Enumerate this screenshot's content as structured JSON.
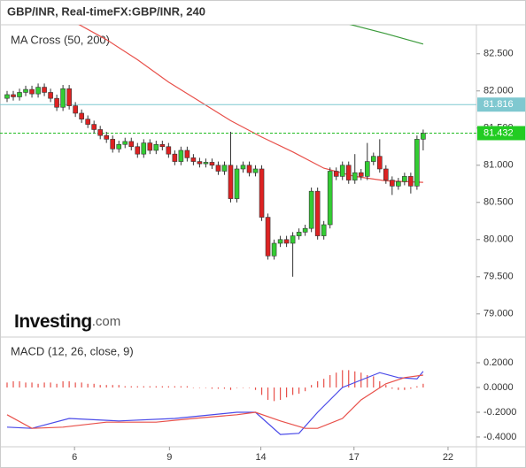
{
  "chart_data": [
    {
      "type": "candlestick",
      "title": "GBP/INR, Real-timeFX:GBP/INR, 240",
      "subtitle": "MA Cross (50, 200)",
      "logo": "Investing",
      "logo_suffix": ".com",
      "up_color": "#33cc33",
      "down_color": "#dd2222",
      "open": [
        81.9,
        81.95,
        81.92,
        81.98,
        82.02,
        81.96,
        82.05,
        81.98,
        81.9,
        81.78,
        82.03,
        81.8,
        81.7,
        81.62,
        81.55,
        81.48,
        81.4,
        81.35,
        81.22,
        81.28,
        81.32,
        81.25,
        81.15,
        81.3,
        81.2,
        81.28,
        81.25,
        81.15,
        81.05,
        81.2,
        81.1,
        81.05,
        81.02,
        81.04,
        81.0,
        80.92,
        81.0,
        80.55,
        80.95,
        81.0,
        80.9,
        80.95,
        80.3,
        79.78,
        79.95,
        80.0,
        79.95,
        80.05,
        80.1,
        80.15,
        80.65,
        80.05,
        80.2,
        80.92,
        80.85,
        81.0,
        80.8,
        80.9,
        80.85,
        81.05,
        81.12,
        80.95,
        80.8,
        80.72,
        80.78,
        80.85,
        80.72,
        81.35
      ],
      "high": [
        82.0,
        82.0,
        82.03,
        82.07,
        82.07,
        82.1,
        82.1,
        82.03,
        81.95,
        82.08,
        82.08,
        81.85,
        81.75,
        81.67,
        81.6,
        81.53,
        81.45,
        81.4,
        81.33,
        81.37,
        81.37,
        81.3,
        81.35,
        81.35,
        81.33,
        81.33,
        81.3,
        81.2,
        81.25,
        81.25,
        81.15,
        81.1,
        81.09,
        81.09,
        81.05,
        81.05,
        81.45,
        81.0,
        81.05,
        81.05,
        81.0,
        81.0,
        80.35,
        80.0,
        80.05,
        80.05,
        80.1,
        80.15,
        80.2,
        80.7,
        80.7,
        80.25,
        80.97,
        80.97,
        81.05,
        81.05,
        81.15,
        80.95,
        81.3,
        81.17,
        81.35,
        81.0,
        80.85,
        80.83,
        80.9,
        80.9,
        81.4,
        81.48
      ],
      "low": [
        81.85,
        81.87,
        81.87,
        81.93,
        81.91,
        81.91,
        81.93,
        81.85,
        81.73,
        81.73,
        81.75,
        81.65,
        81.57,
        81.5,
        81.43,
        81.35,
        81.3,
        81.17,
        81.17,
        81.23,
        81.2,
        81.1,
        81.1,
        81.15,
        81.15,
        81.2,
        81.1,
        81.0,
        81.0,
        81.05,
        81.0,
        80.97,
        80.97,
        80.95,
        80.87,
        80.87,
        80.5,
        80.5,
        80.9,
        80.85,
        80.85,
        80.25,
        79.73,
        79.73,
        79.9,
        79.9,
        79.5,
        80.0,
        80.05,
        80.1,
        80.0,
        80.0,
        80.15,
        80.8,
        80.8,
        80.75,
        80.75,
        80.8,
        80.8,
        81.0,
        80.9,
        80.75,
        80.6,
        80.67,
        80.73,
        80.62,
        80.67,
        81.2
      ],
      "close": [
        81.95,
        81.92,
        81.98,
        82.02,
        81.96,
        82.05,
        81.98,
        81.9,
        81.78,
        82.03,
        81.8,
        81.7,
        81.62,
        81.55,
        81.48,
        81.4,
        81.35,
        81.22,
        81.28,
        81.32,
        81.25,
        81.15,
        81.3,
        81.2,
        81.28,
        81.25,
        81.15,
        81.05,
        81.2,
        81.1,
        81.05,
        81.02,
        81.04,
        81.0,
        80.92,
        81.0,
        80.55,
        80.95,
        81.0,
        80.9,
        80.95,
        80.3,
        79.78,
        79.95,
        80.0,
        79.95,
        80.05,
        80.1,
        80.15,
        80.65,
        80.05,
        80.2,
        80.92,
        80.85,
        81.0,
        80.8,
        80.9,
        80.85,
        81.05,
        81.12,
        80.95,
        80.8,
        80.72,
        80.78,
        80.85,
        80.72,
        81.35,
        81.43
      ],
      "lines": [
        {
          "color": "#e8504a",
          "x": [
            11,
            16,
            21,
            26,
            31,
            36,
            41,
            46,
            51,
            56,
            61,
            67
          ],
          "values": [
            82.92,
            82.69,
            82.42,
            82.12,
            81.86,
            81.6,
            81.38,
            81.18,
            80.96,
            80.85,
            80.79,
            80.77
          ]
        },
        {
          "color": "#3a9a3a",
          "x": [
            55,
            61,
            67
          ],
          "values": [
            82.9,
            82.77,
            82.63
          ]
        }
      ],
      "price_lines": [
        {
          "value": 81.816,
          "color": "#7fc8d0",
          "label_color": "#7fc8d0",
          "dashed": false
        },
        {
          "value": 81.432,
          "color": "#22bb22",
          "label_color": "#22cc22",
          "dashed": true
        }
      ],
      "xlim": [
        -1.14,
        75.57
      ],
      "xticks": [
        {
          "value": 10.86,
          "label": "6"
        },
        {
          "value": 26.14,
          "label": "9"
        },
        {
          "value": 40.86,
          "label": "14"
        },
        {
          "value": 55.86,
          "label": "17"
        },
        {
          "value": 71.0,
          "label": "22"
        }
      ],
      "ylim": [
        78.7,
        82.89
      ],
      "yticks": [
        {
          "value": 79.0,
          "label": "79.000"
        },
        {
          "value": 79.5,
          "label": "79.500"
        },
        {
          "value": 80.0,
          "label": "80.000"
        },
        {
          "value": 80.5,
          "label": "80.500"
        },
        {
          "value": 81.0,
          "label": "81.000"
        },
        {
          "value": 81.5,
          "label": "81.500"
        },
        {
          "value": 82.0,
          "label": "82.000"
        },
        {
          "value": 82.5,
          "label": "82.500"
        }
      ]
    },
    {
      "type": "macd",
      "subtitle": "MACD (12, 26, close, 9)",
      "hist_color": "#e8504a",
      "histogram": [
        0.04,
        0.05,
        0.05,
        0.04,
        0.04,
        0.03,
        0.04,
        0.04,
        0.03,
        0.05,
        0.05,
        0.04,
        0.04,
        0.03,
        0.03,
        0.02,
        0.02,
        0.02,
        0.02,
        0.01,
        0.01,
        0.01,
        0.01,
        0.01,
        0.01,
        0.01,
        0.01,
        0.01,
        0.01,
        0.01,
        0,
        0,
        0,
        -0.01,
        -0.01,
        -0.01,
        -0.02,
        0,
        0,
        0,
        -0.02,
        -0.06,
        -0.1,
        -0.11,
        -0.1,
        -0.08,
        -0.06,
        -0.05,
        -0.03,
        0.02,
        0.05,
        0.07,
        0.1,
        0.12,
        0.14,
        0.14,
        0.13,
        0.12,
        0.1,
        0.09,
        0.05,
        0.02,
        -0.01,
        -0.02,
        -0.02,
        -0.01,
        0.01,
        0.03
      ],
      "lines": [
        {
          "color": "#4a4ae8",
          "x": [
            0,
            4,
            10,
            18,
            27,
            37,
            40,
            44,
            47,
            50,
            54,
            59,
            60,
            63,
            66,
            67
          ],
          "values": [
            -0.32,
            -0.33,
            -0.25,
            -0.27,
            -0.25,
            -0.2,
            -0.2,
            -0.38,
            -0.37,
            -0.2,
            0,
            0.1,
            0.12,
            0.08,
            0.07,
            0.13
          ]
        },
        {
          "color": "#e8504a",
          "x": [
            0,
            4,
            9,
            16,
            24,
            30,
            37,
            40,
            44,
            48,
            50,
            54,
            57,
            61,
            64,
            67
          ],
          "values": [
            -0.22,
            -0.33,
            -0.32,
            -0.28,
            -0.28,
            -0.25,
            -0.22,
            -0.2,
            -0.27,
            -0.33,
            -0.33,
            -0.25,
            -0.1,
            0.03,
            0.08,
            0.1
          ]
        }
      ],
      "ylim": [
        -0.479,
        0.393
      ],
      "yticks": [
        {
          "value": -0.4,
          "label": "-0.4000"
        },
        {
          "value": -0.2,
          "label": "-0.2000"
        },
        {
          "value": 0,
          "label": "0.0000"
        },
        {
          "value": 0.2,
          "label": "0.2000"
        }
      ]
    }
  ]
}
